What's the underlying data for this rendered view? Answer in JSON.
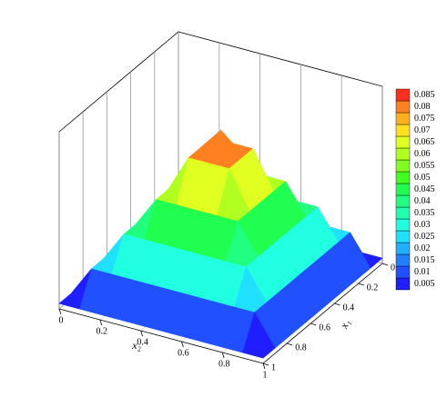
{
  "chart_data": {
    "type": "surface",
    "x_label": "x₂",
    "y_label": "x₁",
    "x": [
      0,
      0.1,
      0.2,
      0.3,
      0.4,
      0.5,
      0.6,
      0.7,
      0.8,
      0.9,
      1
    ],
    "y": [
      0,
      0.1,
      0.2,
      0.3,
      0.4,
      0.5,
      0.6,
      0.7,
      0.8,
      0.9,
      1
    ],
    "z": [
      [
        0.003,
        0.003,
        0.003,
        0.003,
        0.003,
        0.003,
        0.003,
        0.003,
        0.003,
        0.003,
        0.003
      ],
      [
        0.003,
        0.02,
        0.02,
        0.02,
        0.02,
        0.02,
        0.02,
        0.02,
        0.02,
        0.02,
        0.003
      ],
      [
        0.003,
        0.02,
        0.037,
        0.037,
        0.037,
        0.037,
        0.037,
        0.037,
        0.037,
        0.02,
        0.003
      ],
      [
        0.003,
        0.02,
        0.037,
        0.054,
        0.054,
        0.054,
        0.054,
        0.054,
        0.037,
        0.02,
        0.003
      ],
      [
        0.003,
        0.02,
        0.037,
        0.054,
        0.075,
        0.075,
        0.075,
        0.054,
        0.037,
        0.02,
        0.003
      ],
      [
        0.003,
        0.02,
        0.037,
        0.054,
        0.075,
        0.088,
        0.075,
        0.054,
        0.037,
        0.02,
        0.003
      ],
      [
        0.003,
        0.02,
        0.037,
        0.054,
        0.075,
        0.075,
        0.075,
        0.054,
        0.037,
        0.02,
        0.003
      ],
      [
        0.003,
        0.02,
        0.037,
        0.054,
        0.054,
        0.054,
        0.054,
        0.054,
        0.037,
        0.02,
        0.003
      ],
      [
        0.003,
        0.02,
        0.037,
        0.037,
        0.037,
        0.037,
        0.037,
        0.037,
        0.037,
        0.02,
        0.003
      ],
      [
        0.003,
        0.02,
        0.02,
        0.02,
        0.02,
        0.02,
        0.02,
        0.02,
        0.02,
        0.02,
        0.003
      ],
      [
        0.003,
        0.003,
        0.003,
        0.003,
        0.003,
        0.003,
        0.003,
        0.003,
        0.003,
        0.003,
        0.003
      ]
    ],
    "xlim": [
      0,
      1
    ],
    "ylim": [
      0,
      1
    ],
    "zlim": [
      0,
      0.1
    ],
    "xticks": [
      0,
      0.2,
      0.4,
      0.6,
      0.8,
      1
    ],
    "yticks": [
      0,
      0.2,
      0.4,
      0.6,
      0.8,
      1
    ],
    "colorbar_ticks": [
      0.005,
      0.01,
      0.015,
      0.02,
      0.025,
      0.03,
      0.035,
      0.04,
      0.045,
      0.05,
      0.055,
      0.06,
      0.065,
      0.07,
      0.075,
      0.08,
      0.085
    ],
    "colorbar_colors": [
      "#1e1eff",
      "#2050ff",
      "#2080ff",
      "#20b0ff",
      "#20e0ff",
      "#20ffe0",
      "#20ffb0",
      "#20ff80",
      "#20ff50",
      "#40ff20",
      "#80ff20",
      "#b0ff20",
      "#e0ff20",
      "#ffe020",
      "#ffb020",
      "#ff8020",
      "#ff3020"
    ]
  }
}
